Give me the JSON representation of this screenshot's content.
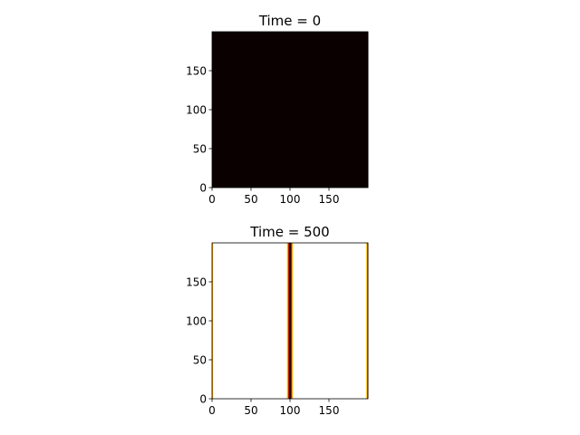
{
  "chart_data": [
    {
      "type": "heatmap",
      "title": "Time = 0",
      "colormap": "hot",
      "xlim": [
        0,
        199
      ],
      "ylim": [
        0,
        199
      ],
      "xticks": [
        0,
        50,
        100,
        150
      ],
      "yticks": [
        0,
        50,
        100,
        150
      ],
      "field": {
        "description_of_values": "uniform field",
        "uniform_value": 0.0
      }
    },
    {
      "type": "heatmap",
      "title": "Time = 500",
      "colormap": "hot",
      "xlim": [
        0,
        199
      ],
      "ylim": [
        0,
        199
      ],
      "xticks": [
        0,
        50,
        100,
        150
      ],
      "yticks": [
        0,
        50,
        100,
        150
      ],
      "field": {
        "x_profile": [
          {
            "x": 0,
            "v": 0.6
          },
          {
            "x": 1,
            "v": 0.85
          },
          {
            "x": 2,
            "v": 1.0
          },
          {
            "x": 95,
            "v": 1.0
          },
          {
            "x": 96,
            "v": 0.8
          },
          {
            "x": 97,
            "v": 0.45
          },
          {
            "x": 98,
            "v": 0.15
          },
          {
            "x": 99,
            "v": 0.03
          },
          {
            "x": 100,
            "v": 0.03
          },
          {
            "x": 101,
            "v": 0.15
          },
          {
            "x": 102,
            "v": 0.45
          },
          {
            "x": 103,
            "v": 0.8
          },
          {
            "x": 104,
            "v": 1.0
          },
          {
            "x": 196,
            "v": 1.0
          },
          {
            "x": 197,
            "v": 0.85
          },
          {
            "x": 198,
            "v": 0.6
          },
          {
            "x": 199,
            "v": 0.5
          }
        ]
      }
    }
  ]
}
